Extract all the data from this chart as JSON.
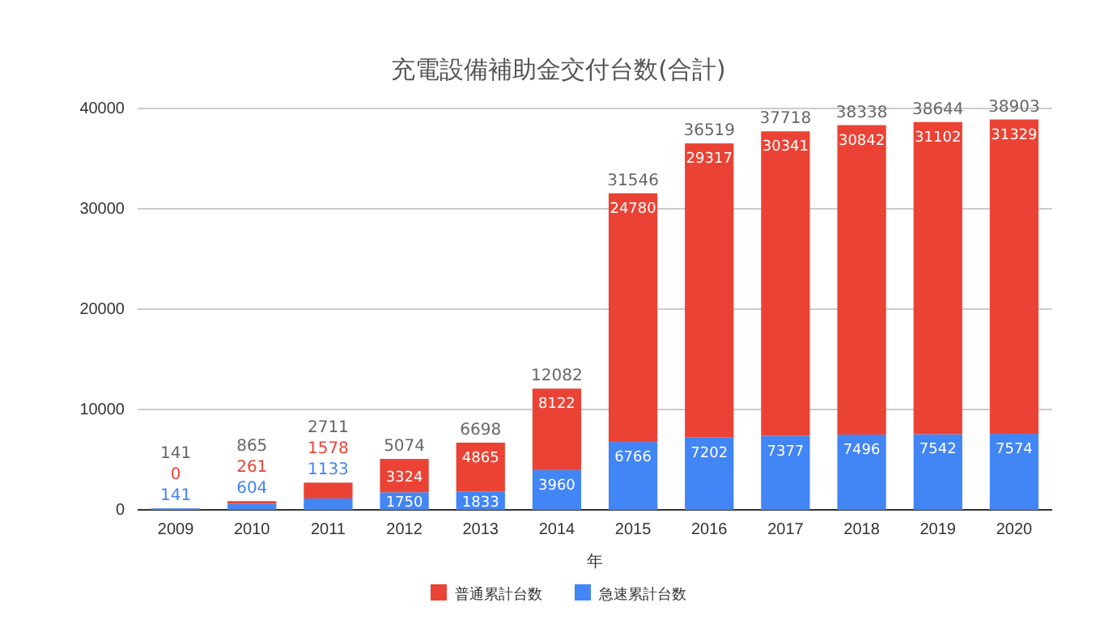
{
  "chart_data": {
    "type": "bar",
    "title": "充電設備補助金交付台数(合計)",
    "xlabel": "年",
    "categories": [
      "2009",
      "2010",
      "2011",
      "2012",
      "2013",
      "2014",
      "2015",
      "2016",
      "2017",
      "2018",
      "2019",
      "2020"
    ],
    "stacked": true,
    "series": [
      {
        "name": "急速累計台数",
        "color": "#4285f4",
        "values": [
          141,
          604,
          1133,
          1750,
          1833,
          3960,
          6766,
          7202,
          7377,
          7496,
          7542,
          7574
        ]
      },
      {
        "name": "普通累計台数",
        "color": "#ea4335",
        "values": [
          0,
          261,
          1578,
          3324,
          4865,
          8122,
          24780,
          29317,
          30341,
          30842,
          31102,
          31329
        ]
      }
    ],
    "totals": [
      "141",
      "865",
      "2711",
      "5074",
      "6698",
      "12082",
      "31546",
      "36519",
      "37718",
      "38338",
      "38644",
      "38903"
    ],
    "data_labels": true,
    "ylim": [
      0,
      40000
    ],
    "yticks": [
      0,
      10000,
      20000,
      30000,
      40000
    ],
    "grid": "y",
    "legend": "bottom"
  }
}
